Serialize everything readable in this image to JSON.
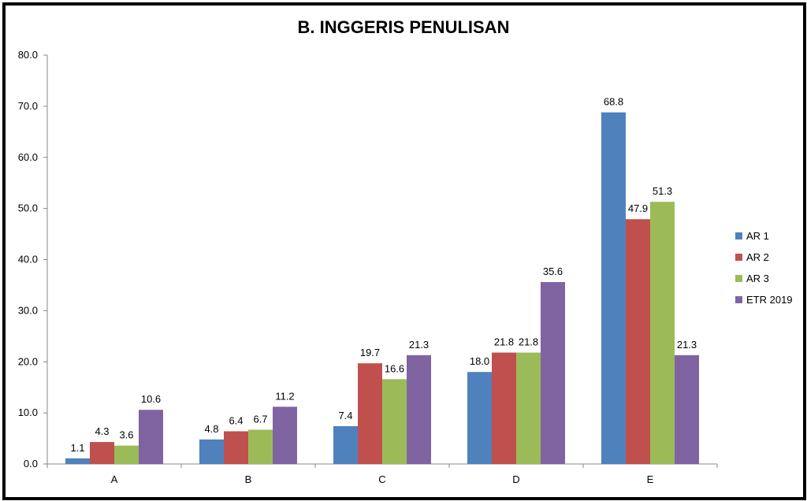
{
  "chart_data": {
    "type": "bar",
    "title": "B. INGGERIS PENULISAN",
    "xlabel": "",
    "ylabel": "",
    "categories": [
      "A",
      "B",
      "C",
      "D",
      "E"
    ],
    "series": [
      {
        "name": "AR 1",
        "color": "#4f81bd",
        "values": [
          1.1,
          4.8,
          7.4,
          18.0,
          68.8
        ]
      },
      {
        "name": "AR 2",
        "color": "#c0504d",
        "values": [
          4.3,
          6.4,
          19.7,
          21.8,
          47.9
        ]
      },
      {
        "name": "AR 3",
        "color": "#9bbb59",
        "values": [
          3.6,
          6.7,
          16.6,
          21.8,
          51.3
        ]
      },
      {
        "name": "ETR 2019",
        "color": "#8064a2",
        "values": [
          10.6,
          11.2,
          21.3,
          35.6,
          21.3
        ]
      }
    ],
    "ylim": [
      0,
      80
    ],
    "yticks": [
      "0.0",
      "10.0",
      "20.0",
      "30.0",
      "40.0",
      "50.0",
      "60.0",
      "70.0",
      "80.0"
    ],
    "grid": false,
    "legend": "right"
  }
}
